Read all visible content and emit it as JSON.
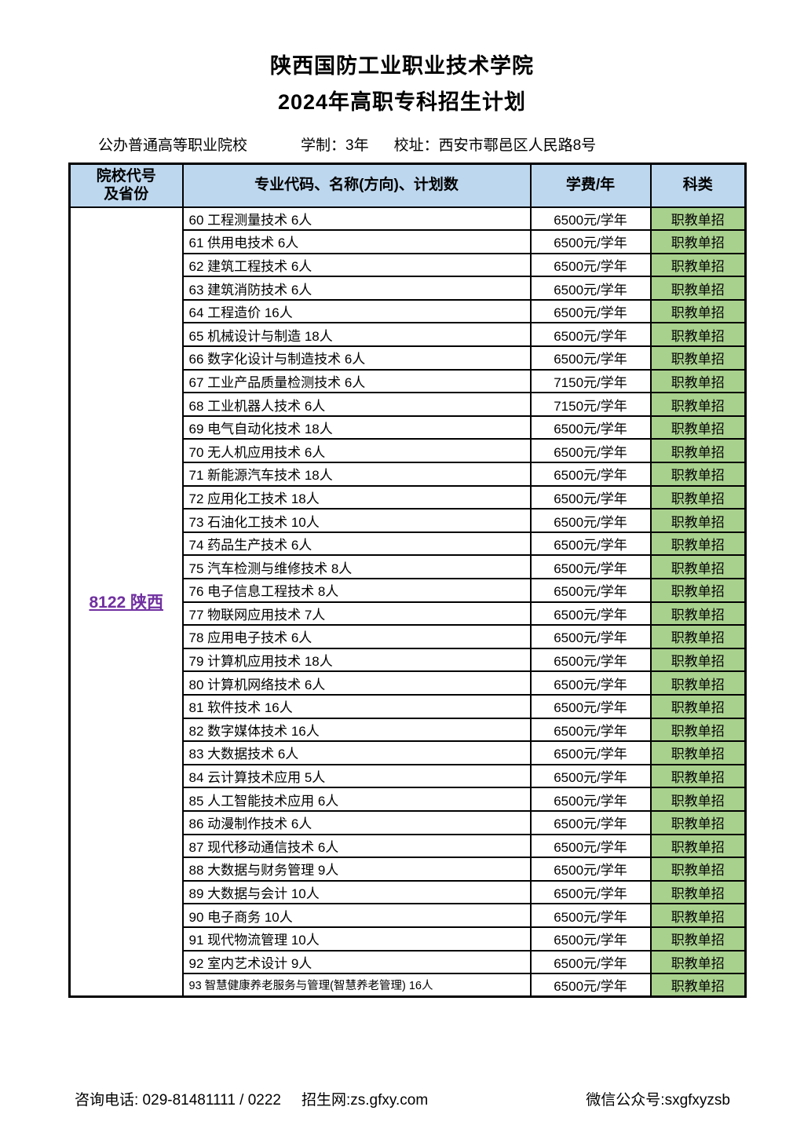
{
  "page": {
    "title": "陕西国防工业职业技术学院",
    "subtitle": "2024年高职专科招生计划",
    "info": {
      "school_type": "公办普通高等职业院校",
      "duration": "学制：3年",
      "address": "校址：西安市鄠邑区人民路8号"
    }
  },
  "table": {
    "headers": {
      "col1_line1": "院校代号",
      "col1_line2": "及省份",
      "col2": "专业代码、名称(方向)、计划数",
      "col3": "学费/年",
      "col4": "科类"
    },
    "institution": {
      "code_province": "8122 陕西"
    },
    "rows": [
      {
        "major": "60 工程测量技术 6人",
        "fee": "6500元/学年",
        "category": "职教单招"
      },
      {
        "major": "61 供用电技术 6人",
        "fee": "6500元/学年",
        "category": "职教单招"
      },
      {
        "major": "62 建筑工程技术 6人",
        "fee": "6500元/学年",
        "category": "职教单招"
      },
      {
        "major": "63 建筑消防技术 6人",
        "fee": "6500元/学年",
        "category": "职教单招"
      },
      {
        "major": "64 工程造价 16人",
        "fee": "6500元/学年",
        "category": "职教单招"
      },
      {
        "major": "65 机械设计与制造 18人",
        "fee": "6500元/学年",
        "category": "职教单招"
      },
      {
        "major": "66 数字化设计与制造技术 6人",
        "fee": "6500元/学年",
        "category": "职教单招"
      },
      {
        "major": "67 工业产品质量检测技术 6人",
        "fee": "7150元/学年",
        "category": "职教单招"
      },
      {
        "major": "68 工业机器人技术 6人",
        "fee": "7150元/学年",
        "category": "职教单招"
      },
      {
        "major": "69 电气自动化技术 18人",
        "fee": "6500元/学年",
        "category": "职教单招"
      },
      {
        "major": "70 无人机应用技术 6人",
        "fee": "6500元/学年",
        "category": "职教单招"
      },
      {
        "major": "71 新能源汽车技术 18人",
        "fee": "6500元/学年",
        "category": "职教单招"
      },
      {
        "major": "72 应用化工技术 18人",
        "fee": "6500元/学年",
        "category": "职教单招"
      },
      {
        "major": "73 石油化工技术 10人",
        "fee": "6500元/学年",
        "category": "职教单招"
      },
      {
        "major": "74 药品生产技术 6人",
        "fee": "6500元/学年",
        "category": "职教单招"
      },
      {
        "major": "75 汽车检测与维修技术 8人",
        "fee": "6500元/学年",
        "category": "职教单招"
      },
      {
        "major": "76 电子信息工程技术 8人",
        "fee": "6500元/学年",
        "category": "职教单招"
      },
      {
        "major": "77 物联网应用技术 7人",
        "fee": "6500元/学年",
        "category": "职教单招"
      },
      {
        "major": "78 应用电子技术 6人",
        "fee": "6500元/学年",
        "category": "职教单招"
      },
      {
        "major": "79 计算机应用技术 18人",
        "fee": "6500元/学年",
        "category": "职教单招"
      },
      {
        "major": "80 计算机网络技术 6人",
        "fee": "6500元/学年",
        "category": "职教单招"
      },
      {
        "major": "81 软件技术 16人",
        "fee": "6500元/学年",
        "category": "职教单招"
      },
      {
        "major": "82 数字媒体技术 16人",
        "fee": "6500元/学年",
        "category": "职教单招"
      },
      {
        "major": "83 大数据技术 6人",
        "fee": "6500元/学年",
        "category": "职教单招"
      },
      {
        "major": "84 云计算技术应用 5人",
        "fee": "6500元/学年",
        "category": "职教单招"
      },
      {
        "major": "85 人工智能技术应用 6人",
        "fee": "6500元/学年",
        "category": "职教单招"
      },
      {
        "major": "86 动漫制作技术 6人",
        "fee": "6500元/学年",
        "category": "职教单招"
      },
      {
        "major": "87 现代移动通信技术 6人",
        "fee": "6500元/学年",
        "category": "职教单招"
      },
      {
        "major": "88 大数据与财务管理 9人",
        "fee": "6500元/学年",
        "category": "职教单招"
      },
      {
        "major": "89 大数据与会计 10人",
        "fee": "6500元/学年",
        "category": "职教单招"
      },
      {
        "major": "90 电子商务 10人",
        "fee": "6500元/学年",
        "category": "职教单招"
      },
      {
        "major": "91 现代物流管理 10人",
        "fee": "6500元/学年",
        "category": "职教单招"
      },
      {
        "major": "92 室内艺术设计 9人",
        "fee": "6500元/学年",
        "category": "职教单招"
      },
      {
        "major": "93 智慧健康养老服务与管理(智慧养老管理) 16人",
        "fee": "6500元/学年",
        "category": "职教单招"
      }
    ]
  },
  "footer": {
    "phone": "咨询电话: 029-81481111 / 0222",
    "website": "招生网:zs.gfxy.com",
    "wechat": "微信公众号:sxgfxyzsb"
  },
  "colors": {
    "header_bg": "#BDD7EE",
    "category_bg": "#A9D18E",
    "institution_color": "#7030A0"
  }
}
